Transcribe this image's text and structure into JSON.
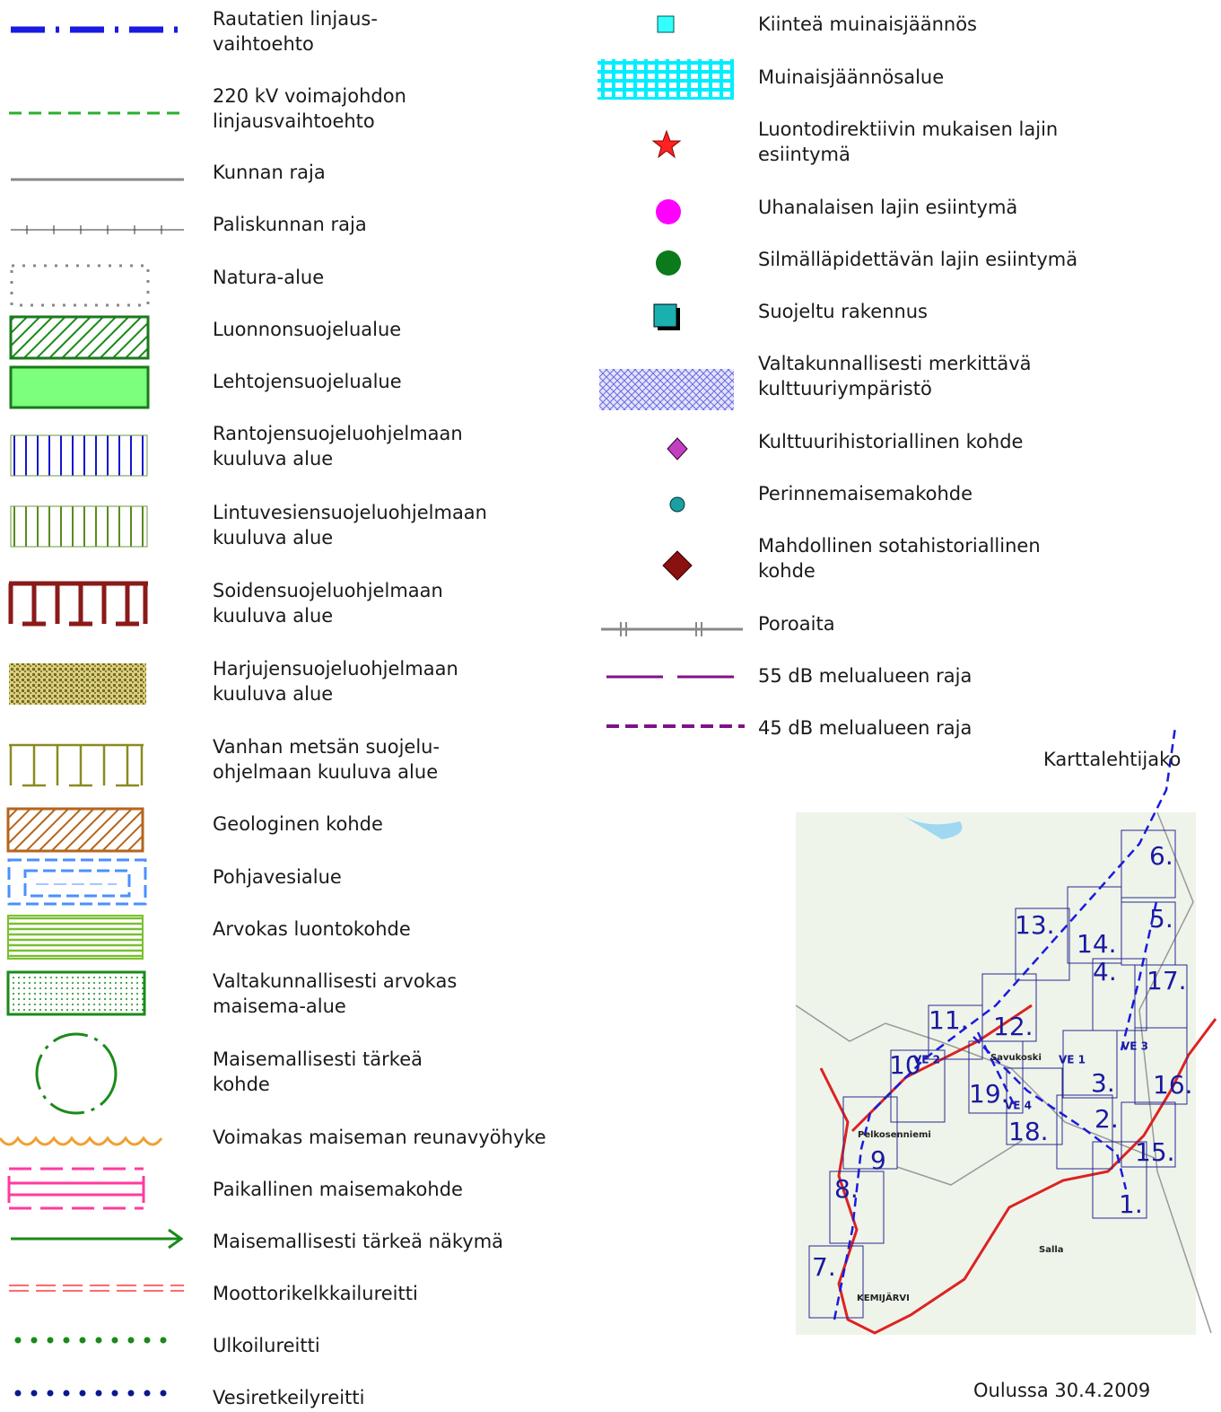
{
  "legend_left": [
    {
      "label": [
        "Rautatien linjaus-",
        "vaihtoehto"
      ]
    },
    {
      "label": [
        "220 kV voimajohdon",
        "linjausvaihtoehto"
      ]
    },
    {
      "label": [
        "Kunnan raja"
      ]
    },
    {
      "label": [
        "Paliskunnan raja"
      ]
    },
    {
      "label": [
        "Natura-alue"
      ]
    },
    {
      "label": [
        "Luonnonsuojelualue"
      ]
    },
    {
      "label": [
        "Lehtojensuojelualue"
      ]
    },
    {
      "label": [
        "Rantojensuojeluohjelmaan",
        "kuuluva alue"
      ]
    },
    {
      "label": [
        "Lintuvesiensuojeluohjelmaan",
        "kuuluva alue"
      ]
    },
    {
      "label": [
        "Soidensuojeluohjelmaan",
        "kuuluva alue"
      ]
    },
    {
      "label": [
        "Harjujensuojeluohjelmaan",
        "kuuluva alue"
      ]
    },
    {
      "label": [
        "Vanhan metsän suojelu-",
        "ohjelmaan kuuluva alue"
      ]
    },
    {
      "label": [
        "Geologinen kohde"
      ]
    },
    {
      "label": [
        "Pohjavesialue"
      ]
    },
    {
      "label": [
        "Arvokas luontokohde"
      ]
    },
    {
      "label": [
        "Valtakunnallisesti arvokas",
        "maisema-alue"
      ]
    },
    {
      "label": [
        "Maisemallisesti tärkeä",
        "kohde"
      ]
    },
    {
      "label": [
        "Voimakas maiseman reunavyöhyke"
      ]
    },
    {
      "label": [
        "Paikallinen maisemakohde"
      ]
    },
    {
      "label": [
        "Maisemallisesti tärkeä näkymä"
      ]
    },
    {
      "label": [
        "Moottorikelkkailureitti"
      ]
    },
    {
      "label": [
        "Ulkoilureitti"
      ]
    },
    {
      "label": [
        "Vesiretkeilyreitti"
      ]
    }
  ],
  "legend_right": [
    {
      "label": [
        "Kiinteä muinaisjäännös"
      ]
    },
    {
      "label": [
        "Muinaisjäännösalue"
      ]
    },
    {
      "label": [
        "Luontodirektiivin mukaisen lajin",
        "esiintymä"
      ]
    },
    {
      "label": [
        "Uhanalaisen lajin esiintymä"
      ]
    },
    {
      "label": [
        "Silmälläpidettävän lajin esiintymä"
      ]
    },
    {
      "label": [
        "Suojeltu rakennus"
      ]
    },
    {
      "label": [
        "Valtakunnallisesti merkittävä",
        "kulttuuriympäristö"
      ]
    },
    {
      "label": [
        "Kulttuurihistoriallinen kohde"
      ]
    },
    {
      "label": [
        "Perinnemaisemakohde"
      ]
    },
    {
      "label": [
        "Mahdollinen sotahistoriallinen",
        "kohde"
      ]
    },
    {
      "label": [
        "Poroaita"
      ]
    },
    {
      "label": [
        "55 dB melualueen raja"
      ]
    },
    {
      "label": [
        "45 dB melualueen raja"
      ]
    }
  ],
  "map": {
    "title": "Karttalehtijako",
    "sheets": [
      "6.",
      "5.",
      "13.",
      "14.",
      "4.",
      "17.",
      "11.",
      "12.",
      "10",
      "19.",
      "3.",
      "16.",
      "18.",
      "2.",
      "15.",
      "9",
      "8.",
      "1.",
      "7."
    ],
    "routes": [
      "VE 1",
      "VE 2",
      "VE 3",
      "VE 4"
    ],
    "places": [
      "Savukoski",
      "Pelkosenniemi",
      "Salla",
      "KEMIJÄRVI"
    ]
  },
  "footer": "Oulussa 30.4.2009"
}
